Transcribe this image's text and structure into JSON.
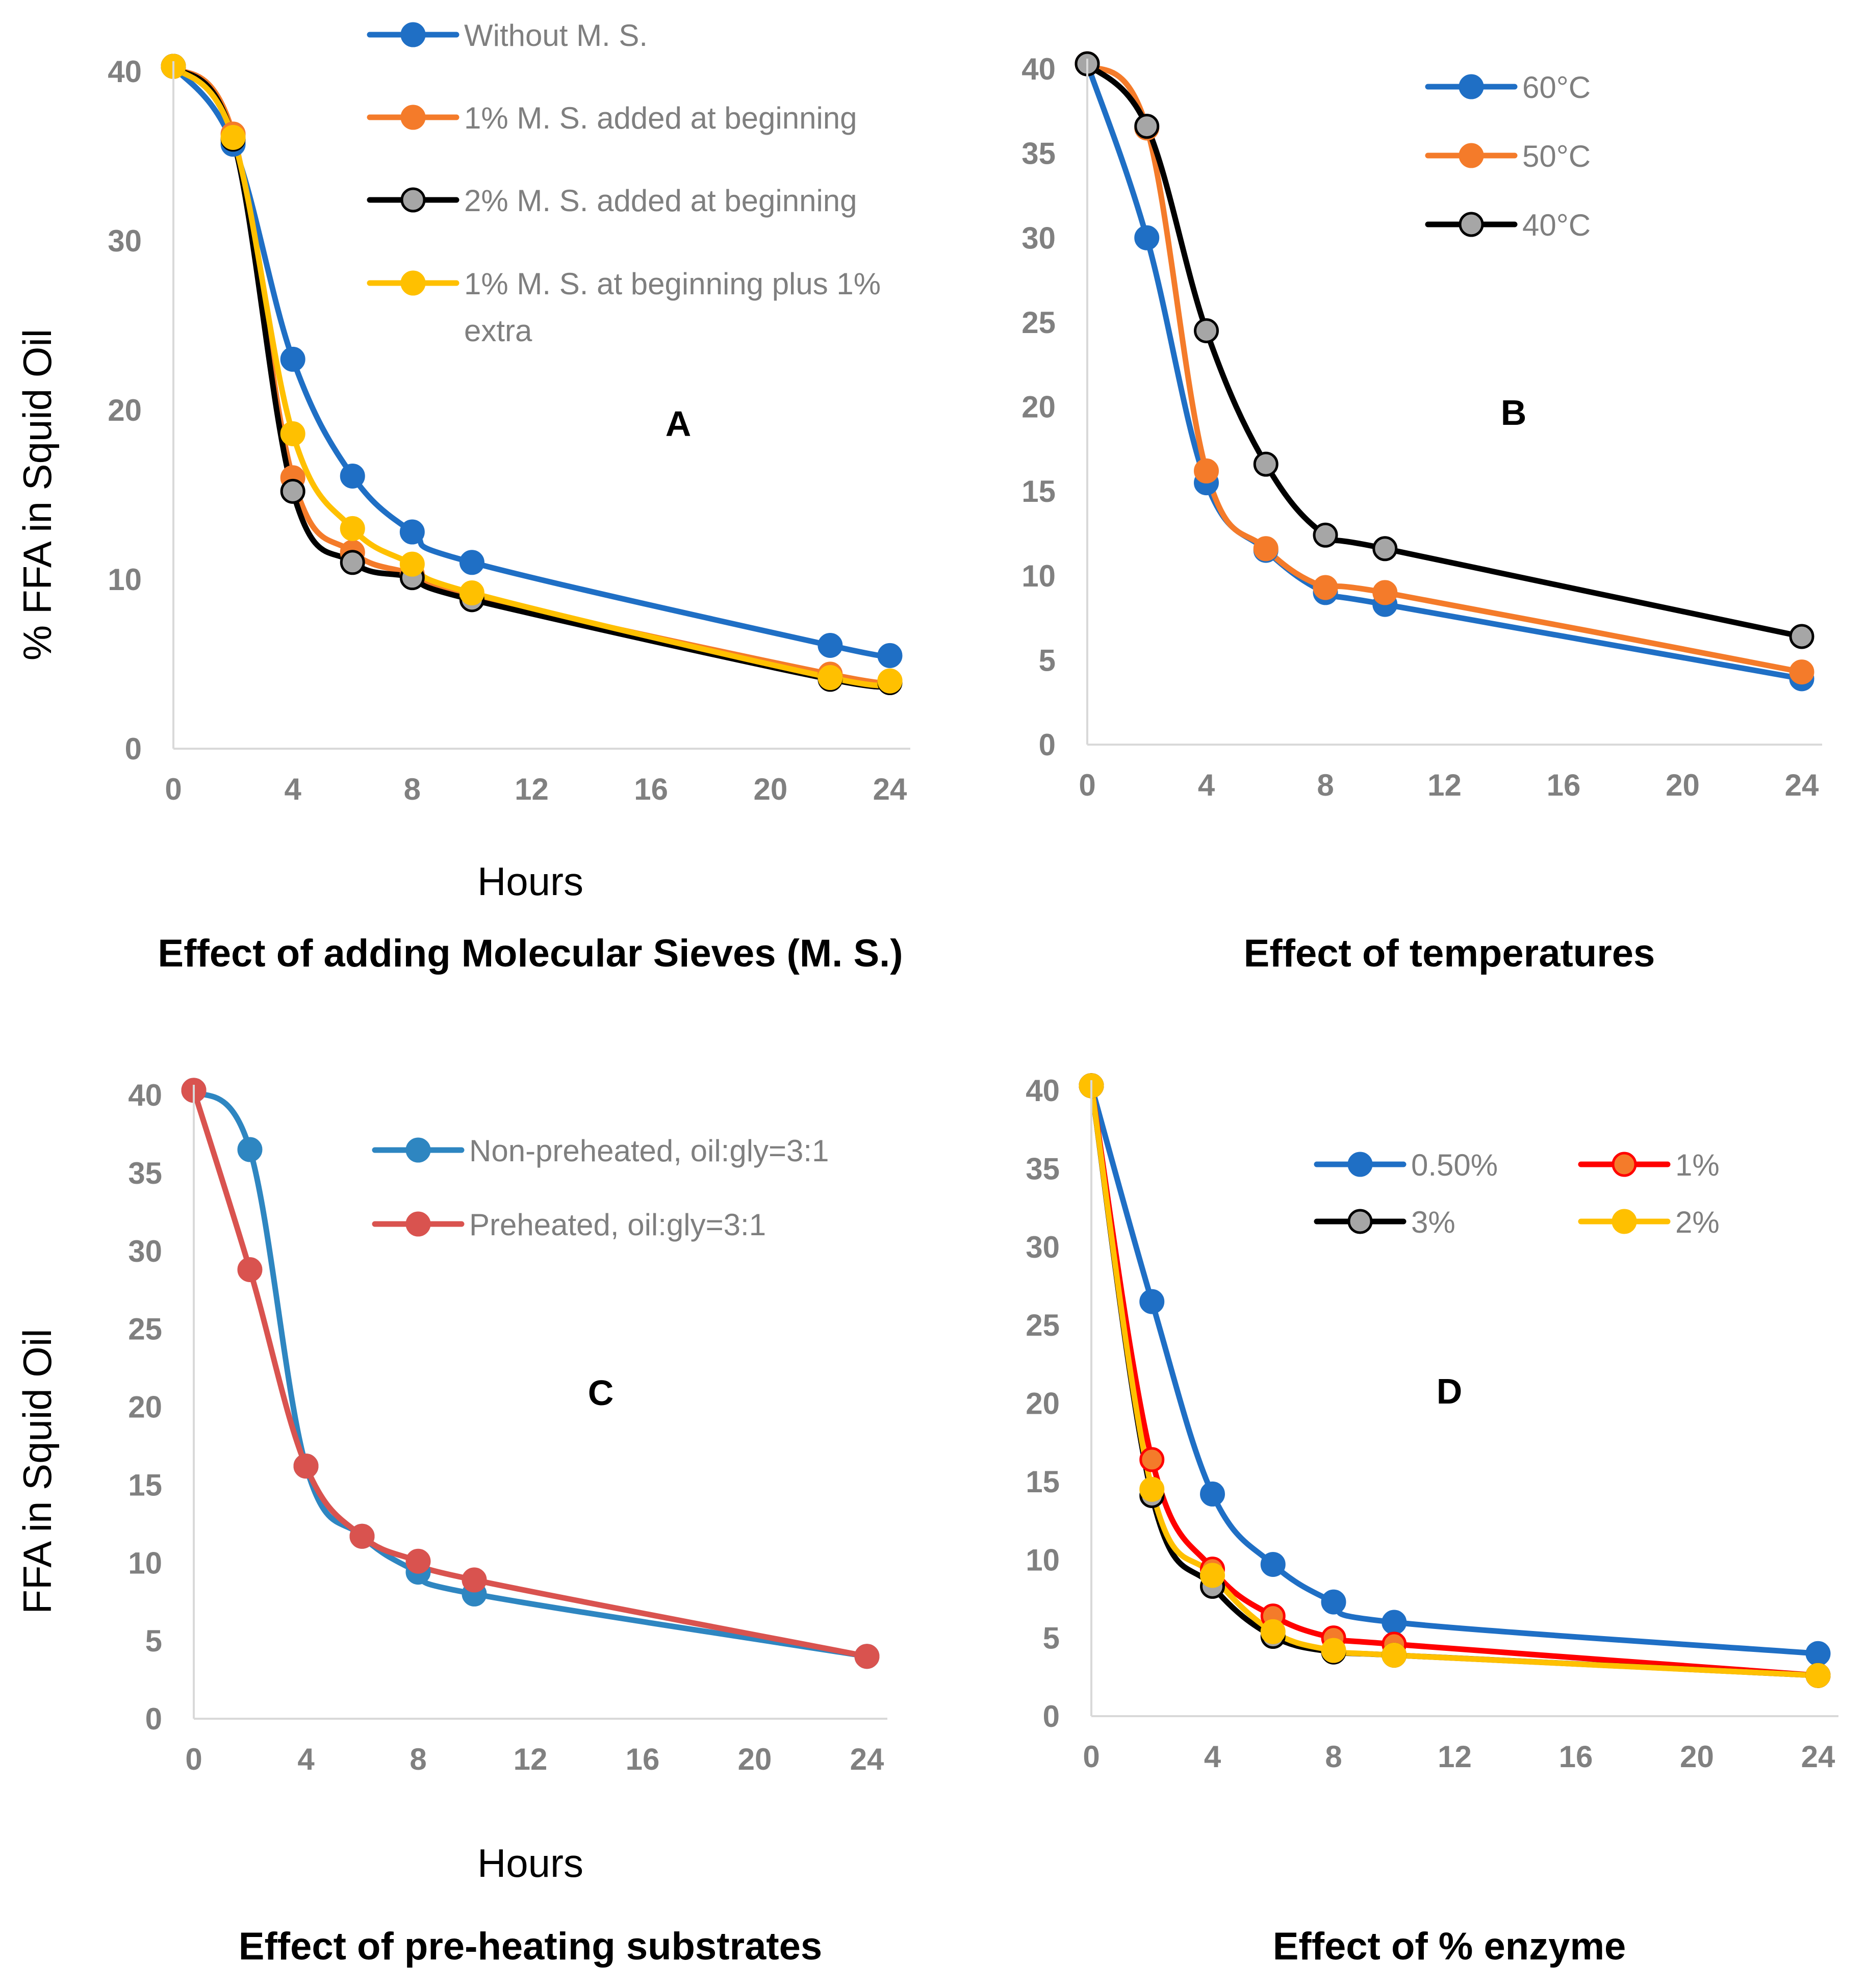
{
  "chart_data": [
    {
      "panel": "A",
      "type": "line",
      "title": "Effect of adding Molecular Sieves (M. S.)",
      "xlabel": "Hours",
      "ylabel": "% FFA in Squid Oil",
      "xlim": [
        0,
        24
      ],
      "ylim": [
        0,
        40
      ],
      "xticks": [
        0,
        4,
        8,
        12,
        16,
        20,
        24
      ],
      "yticks": [
        0,
        10,
        20,
        30,
        40
      ],
      "legend_position": "top",
      "series": [
        {
          "name": "Without M. S.",
          "color": "#1F6FC5",
          "marker": "#1F6FC5",
          "x": [
            0,
            2,
            4,
            6,
            8,
            10,
            22,
            24
          ],
          "y": [
            40.3,
            35.7,
            23.0,
            16.1,
            12.8,
            11.0,
            6.1,
            5.5
          ]
        },
        {
          "name": "1% M. S. added at beginning",
          "color": "#F47B2A",
          "marker": "#F47B2A",
          "x": [
            0,
            2,
            4,
            6,
            8,
            10,
            22,
            24
          ],
          "y": [
            40.3,
            36.3,
            16.0,
            11.6,
            10.3,
            9.0,
            4.4,
            4.0
          ]
        },
        {
          "name": "2% M. S. added at beginning",
          "color": "#000000",
          "marker": "#A6A6A6",
          "x": [
            0,
            2,
            4,
            6,
            8,
            10,
            22,
            24
          ],
          "y": [
            40.3,
            36.0,
            15.2,
            11.0,
            10.1,
            8.8,
            4.1,
            3.9
          ]
        },
        {
          "name": "1% M. S. at beginning plus 1% extra",
          "color": "#FFC000",
          "marker": "#FFC000",
          "x": [
            0,
            2,
            4,
            6,
            8,
            10,
            22,
            24
          ],
          "y": [
            40.3,
            36.1,
            18.6,
            13.0,
            10.9,
            9.2,
            4.2,
            4.0
          ]
        }
      ]
    },
    {
      "panel": "B",
      "type": "line",
      "title": "Effect of temperatures",
      "xlabel": "",
      "ylabel": "",
      "xlim": [
        0,
        24
      ],
      "ylim": [
        0,
        40
      ],
      "xticks": [
        0,
        4,
        8,
        12,
        16,
        20,
        24
      ],
      "yticks": [
        0,
        5,
        10,
        15,
        20,
        25,
        30,
        35,
        40
      ],
      "legend_position": "top-left",
      "series": [
        {
          "name": "60°C",
          "color": "#1F6FC5",
          "marker": "#1F6FC5",
          "x": [
            0,
            2,
            4,
            6,
            8,
            10,
            24
          ],
          "y": [
            40.3,
            30.0,
            15.5,
            11.5,
            9.0,
            8.3,
            3.9
          ]
        },
        {
          "name": "50°C",
          "color": "#F47B2A",
          "marker": "#F47B2A",
          "x": [
            0,
            2,
            4,
            6,
            8,
            10,
            24
          ],
          "y": [
            40.3,
            36.5,
            16.2,
            11.6,
            9.3,
            9.0,
            4.3
          ]
        },
        {
          "name": "40°C",
          "color": "#000000",
          "marker": "#A6A6A6",
          "x": [
            0,
            2,
            4,
            6,
            8,
            10,
            24
          ],
          "y": [
            40.3,
            36.6,
            24.5,
            16.6,
            12.4,
            11.6,
            6.4
          ]
        }
      ]
    },
    {
      "panel": "C",
      "type": "line",
      "title": "Effect of pre-heating substrates",
      "xlabel": "Hours",
      "ylabel": "FFA in Squid Oil",
      "xlim": [
        0,
        24
      ],
      "ylim": [
        0,
        40
      ],
      "xticks": [
        0,
        4,
        8,
        12,
        16,
        20,
        24
      ],
      "yticks": [
        0,
        5,
        10,
        15,
        20,
        25,
        30,
        35,
        40
      ],
      "legend_position": "top",
      "series": [
        {
          "name": "Non-preheated, oil:gly=3:1",
          "color": "#2E86C1",
          "marker": "#2E86C1",
          "x": [
            0,
            2,
            4,
            6,
            8,
            10,
            24
          ],
          "y": [
            40.3,
            36.5,
            16.2,
            11.7,
            9.4,
            8.0,
            4.0
          ]
        },
        {
          "name": "Preheated, oil:gly=3:1",
          "color": "#D9534F",
          "marker": "#D9534F",
          "x": [
            0,
            2,
            4,
            6,
            8,
            10,
            24
          ],
          "y": [
            40.3,
            28.8,
            16.2,
            11.7,
            10.1,
            8.9,
            4.0
          ]
        }
      ]
    },
    {
      "panel": "D",
      "type": "line",
      "title": "Effect of % enzyme",
      "xlabel": "",
      "ylabel": "",
      "xlim": [
        0,
        24
      ],
      "ylim": [
        0,
        40
      ],
      "xticks": [
        0,
        4,
        8,
        12,
        16,
        20,
        24
      ],
      "yticks": [
        0,
        5,
        10,
        15,
        20,
        25,
        30,
        35,
        40
      ],
      "legend_position": "top-right",
      "series": [
        {
          "name": "0.50%",
          "color": "#1F6FC5",
          "marker": "#1F6FC5",
          "x": [
            0,
            2,
            4,
            6,
            8,
            10,
            24
          ],
          "y": [
            40.3,
            26.5,
            14.2,
            9.7,
            7.3,
            6.0,
            4.0
          ]
        },
        {
          "name": "1%",
          "color": "#FF0000",
          "marker": "#F47B2A",
          "x": [
            0,
            2,
            4,
            6,
            8,
            10,
            24
          ],
          "y": [
            40.3,
            16.4,
            9.4,
            6.4,
            5.0,
            4.6,
            2.6
          ]
        },
        {
          "name": "3%",
          "color": "#000000",
          "marker": "#A6A6A6",
          "x": [
            0,
            2,
            4,
            6,
            8,
            10,
            24
          ],
          "y": [
            40.3,
            14.1,
            8.3,
            5.1,
            4.1,
            3.9,
            2.6
          ]
        },
        {
          "name": "2%",
          "color": "#FFC000",
          "marker": "#FFC000",
          "x": [
            0,
            2,
            4,
            6,
            8,
            10,
            24
          ],
          "y": [
            40.3,
            14.5,
            9.0,
            5.4,
            4.2,
            3.9,
            2.6
          ]
        }
      ]
    }
  ]
}
